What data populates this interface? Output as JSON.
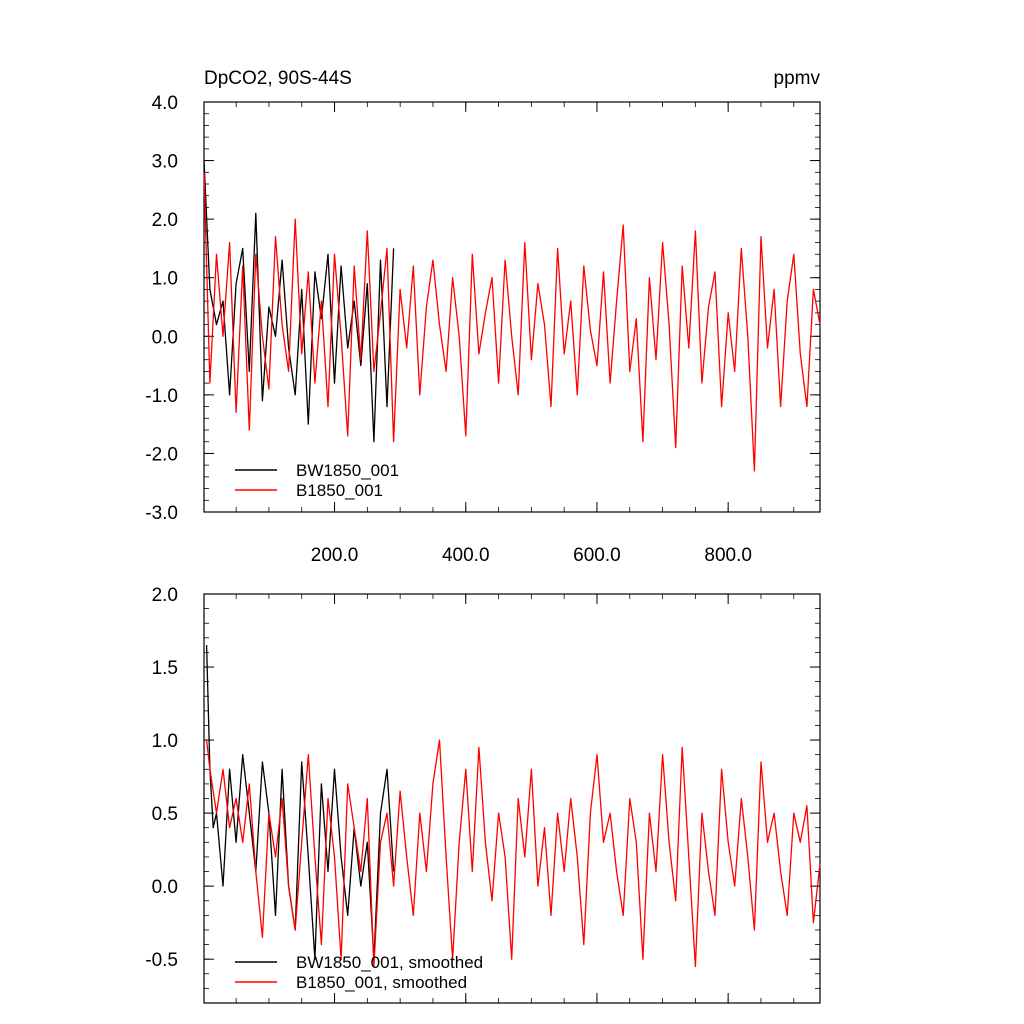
{
  "chart_data": [
    {
      "type": "line",
      "title": "DpCO2, 90S-44S",
      "units": "ppmv",
      "xlim": [
        1,
        940
      ],
      "ylim": [
        -3,
        4
      ],
      "y_ticks": [
        -3,
        -2,
        -1,
        0,
        1,
        2,
        3,
        4
      ],
      "y_tick_labels": [
        "-3.0",
        "-2.0",
        "-1.0",
        "0.0",
        "1.0",
        "2.0",
        "3.0",
        "4.0"
      ],
      "x_ticks": [
        200,
        400,
        600,
        800
      ],
      "x_tick_labels": [
        "200.0",
        "400.0",
        "600.0",
        "800.0"
      ],
      "legend": "bottom-left",
      "colors": {
        "BW1850_001": "#000000",
        "B1850_001": "#ff0000"
      },
      "series": [
        {
          "name": "BW1850_001",
          "color": "#000000",
          "x": [
            1,
            10,
            20,
            30,
            40,
            50,
            60,
            70,
            80,
            90,
            100,
            110,
            120,
            130,
            140,
            150,
            160,
            170,
            180,
            190,
            200,
            210,
            220,
            230,
            240,
            250,
            260,
            270,
            280,
            290
          ],
          "y": [
            3.0,
            0.8,
            0.2,
            0.6,
            -1.0,
            0.9,
            1.5,
            -0.6,
            2.1,
            -1.1,
            0.5,
            0.0,
            1.3,
            -0.2,
            -1.0,
            0.8,
            -1.5,
            1.1,
            0.3,
            1.4,
            -0.8,
            1.2,
            -0.2,
            0.6,
            -0.5,
            0.9,
            -1.8,
            1.3,
            -1.2,
            1.5
          ]
        },
        {
          "name": "B1850_001",
          "color": "#ff0000",
          "x": [
            1,
            10,
            20,
            30,
            40,
            50,
            60,
            70,
            80,
            90,
            100,
            110,
            120,
            130,
            140,
            150,
            160,
            170,
            180,
            190,
            200,
            210,
            220,
            230,
            240,
            250,
            260,
            270,
            280,
            290,
            300,
            310,
            320,
            330,
            340,
            350,
            360,
            370,
            380,
            390,
            400,
            410,
            420,
            430,
            440,
            450,
            460,
            470,
            480,
            490,
            500,
            510,
            520,
            530,
            540,
            550,
            560,
            570,
            580,
            590,
            600,
            610,
            620,
            630,
            640,
            650,
            660,
            670,
            680,
            690,
            700,
            710,
            720,
            730,
            740,
            750,
            760,
            770,
            780,
            790,
            800,
            810,
            820,
            830,
            840,
            850,
            860,
            870,
            880,
            890,
            900,
            910,
            920,
            930,
            940
          ],
          "y": [
            2.8,
            -0.8,
            1.4,
            0.0,
            1.6,
            -1.3,
            1.2,
            -1.6,
            1.4,
            0.0,
            -0.9,
            1.7,
            0.2,
            -0.6,
            2.0,
            -0.3,
            1.1,
            -0.8,
            0.6,
            -1.2,
            1.4,
            0.0,
            -1.7,
            1.2,
            -0.4,
            1.8,
            -0.6,
            0.4,
            1.5,
            -1.8,
            0.8,
            -0.2,
            1.2,
            -1.0,
            0.5,
            1.3,
            0.2,
            -0.6,
            1.0,
            0.0,
            -1.7,
            1.4,
            -0.3,
            0.4,
            1.0,
            -0.8,
            1.3,
            0.0,
            -1.0,
            1.6,
            -0.4,
            0.9,
            0.2,
            -1.2,
            1.5,
            -0.3,
            0.6,
            -1.0,
            1.2,
            0.1,
            -0.5,
            1.1,
            -0.8,
            0.6,
            1.9,
            -0.6,
            0.3,
            -1.8,
            1.0,
            -0.4,
            1.6,
            0.2,
            -1.9,
            1.2,
            -0.2,
            1.8,
            -0.8,
            0.5,
            1.1,
            -1.2,
            0.4,
            -0.6,
            1.5,
            0.0,
            -2.3,
            1.7,
            -0.2,
            0.8,
            -1.2,
            0.6,
            1.4,
            -0.3,
            -1.2,
            0.8,
            0.2
          ]
        }
      ]
    },
    {
      "type": "line",
      "xlim": [
        1,
        940
      ],
      "ylim": [
        -0.8,
        2.0
      ],
      "y_ticks": [
        -0.5,
        0,
        0.5,
        1.0,
        1.5,
        2.0
      ],
      "y_tick_labels": [
        "-0.5",
        "0.0",
        "0.5",
        "1.0",
        "1.5",
        "2.0"
      ],
      "x_ticks": [
        200,
        400,
        600,
        800
      ],
      "legend": "bottom-left",
      "colors": {
        "BW1850_001, smoothed": "#000000",
        "B1850_001, smoothed": "#ff0000"
      },
      "series": [
        {
          "name": "BW1850_001, smoothed",
          "color": "#000000",
          "x": [
            5,
            10,
            15,
            20,
            30,
            40,
            50,
            60,
            70,
            80,
            90,
            100,
            110,
            120,
            130,
            140,
            150,
            160,
            170,
            180,
            190,
            200,
            210,
            220,
            230,
            240,
            250,
            260,
            270,
            280,
            290
          ],
          "y": [
            1.65,
            0.8,
            0.4,
            0.5,
            0.0,
            0.8,
            0.3,
            0.9,
            0.5,
            0.1,
            0.85,
            0.5,
            -0.2,
            0.8,
            0.0,
            -0.3,
            0.85,
            0.2,
            -0.5,
            0.7,
            0.1,
            0.8,
            0.2,
            -0.2,
            0.4,
            0.0,
            0.3,
            -0.5,
            0.5,
            0.8,
            0.1
          ]
        },
        {
          "name": "B1850_001, smoothed",
          "color": "#ff0000",
          "x": [
            5,
            10,
            20,
            30,
            40,
            50,
            60,
            70,
            80,
            90,
            100,
            110,
            120,
            130,
            140,
            150,
            160,
            170,
            180,
            190,
            200,
            210,
            220,
            230,
            240,
            250,
            260,
            270,
            280,
            290,
            300,
            310,
            320,
            330,
            340,
            350,
            360,
            370,
            380,
            390,
            400,
            410,
            420,
            430,
            440,
            450,
            460,
            470,
            480,
            490,
            500,
            510,
            520,
            530,
            540,
            550,
            560,
            570,
            580,
            590,
            600,
            610,
            620,
            630,
            640,
            650,
            660,
            670,
            680,
            690,
            700,
            710,
            720,
            730,
            740,
            750,
            760,
            770,
            780,
            790,
            800,
            810,
            820,
            830,
            840,
            850,
            860,
            870,
            880,
            890,
            900,
            910,
            920,
            930,
            940
          ],
          "y": [
            1.0,
            0.8,
            0.5,
            0.8,
            0.4,
            0.6,
            0.3,
            0.7,
            0.1,
            -0.35,
            0.5,
            0.2,
            0.6,
            0.0,
            -0.3,
            0.3,
            0.9,
            0.2,
            -0.4,
            0.6,
            0.2,
            -0.5,
            0.7,
            0.4,
            0.1,
            0.6,
            -0.55,
            0.3,
            0.5,
            0.0,
            0.65,
            0.2,
            -0.2,
            0.5,
            0.1,
            0.7,
            1.0,
            0.2,
            -0.5,
            0.3,
            0.8,
            0.1,
            0.95,
            0.3,
            -0.1,
            0.5,
            0.2,
            -0.5,
            0.6,
            0.2,
            0.8,
            0.0,
            0.4,
            -0.2,
            0.5,
            0.1,
            0.6,
            0.2,
            -0.4,
            0.5,
            0.9,
            0.3,
            0.5,
            0.1,
            -0.2,
            0.6,
            0.3,
            -0.5,
            0.5,
            0.1,
            0.9,
            0.3,
            -0.1,
            0.95,
            0.2,
            -0.55,
            0.5,
            0.1,
            -0.2,
            0.8,
            0.3,
            0.0,
            0.6,
            0.2,
            -0.3,
            0.85,
            0.3,
            0.5,
            0.1,
            -0.2,
            0.5,
            0.3,
            0.55,
            -0.25,
            0.15
          ]
        }
      ]
    }
  ]
}
